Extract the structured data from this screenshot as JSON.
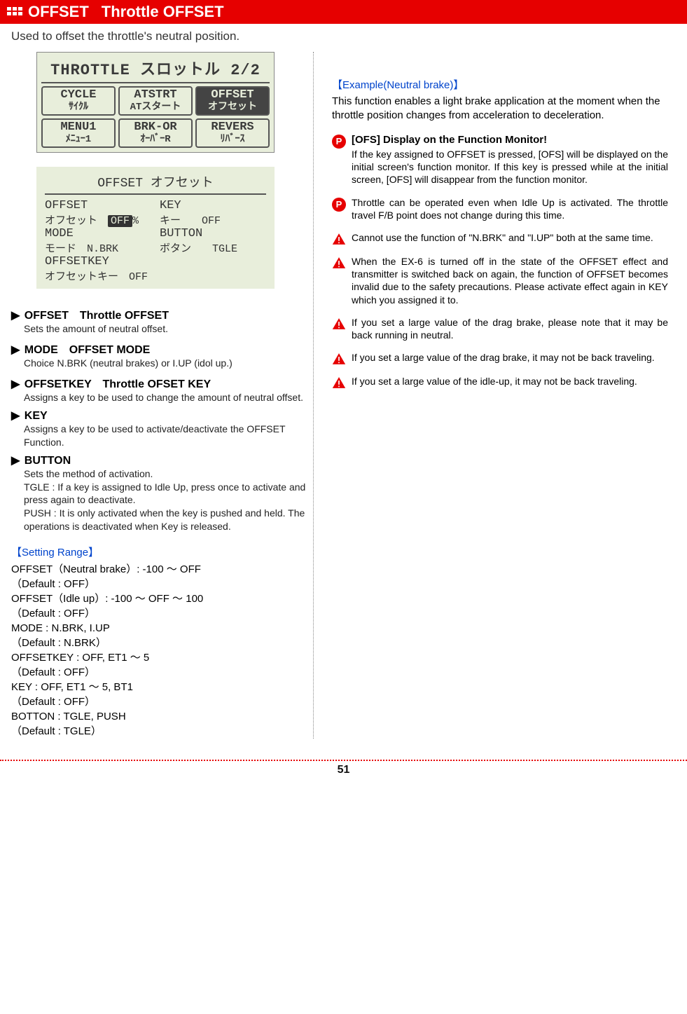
{
  "header": {
    "title_main": "OFFSET",
    "title_sub": "Throttle OFFSET"
  },
  "subtitle": "Used to offset the throttle's neutral position.",
  "lcd1": {
    "row1": "THROTTLE スロットル 2/2",
    "cells_top": [
      {
        "top": "CYCLE",
        "bottom": "ｻｲｸﾙ",
        "selected": false
      },
      {
        "top": "ATSTRT",
        "bottom": "ATスタート",
        "selected": false
      },
      {
        "top": "OFFSET",
        "bottom": "オフセット",
        "selected": true
      }
    ],
    "cells_bottom": [
      {
        "top": "MENU1",
        "bottom": "ﾒﾆｭｰ1",
        "selected": false
      },
      {
        "top": "BRK-OR",
        "bottom": "ｵｰﾊﾞｰR",
        "selected": false
      },
      {
        "top": "REVERS",
        "bottom": "ﾘﾊﾞｰｽ",
        "selected": false
      }
    ]
  },
  "lcd2": {
    "header": "OFFSET オフセット",
    "rows": [
      {
        "l_lab": "OFFSET",
        "l_sub": "オフセット",
        "l_val": "OFF",
        "l_unit": "%",
        "l_inv": true,
        "r_lab": "KEY",
        "r_sub": "キー",
        "r_val": "OFF"
      },
      {
        "l_lab": "MODE",
        "l_sub": "モード",
        "l_val": "N.BRK",
        "r_lab": "BUTTON",
        "r_sub": "ボタン",
        "r_val": "TGLE"
      },
      {
        "l_lab": "OFFSETKEY",
        "l_sub": "オフセットキー",
        "l_val": "OFF"
      }
    ]
  },
  "definitions": [
    {
      "head": "OFFSET　Throttle OFFSET",
      "desc": "Sets the amount of neutral offset."
    },
    {
      "head": "MODE　OFFSET MODE",
      "desc": "Choice N.BRK (neutral brakes) or I.UP (idol up.)"
    },
    {
      "head": "OFFSETKEY　Throttle OFSET KEY",
      "desc": "Assigns a key to be used to change the amount of neutral offset."
    },
    {
      "head": "KEY",
      "desc": "Assigns a key to be used to activate/deactivate the OFFSET Function."
    },
    {
      "head": "BUTTON",
      "desc": "Sets the method of activation.\nTGLE : If a key is assigned to Idle Up, press once to activate and press again to deactivate.\nPUSH : It is only activated when the key is pushed and held. The operations is deactivated when Key is released."
    }
  ],
  "setting_range": {
    "header": "【Setting Range】",
    "lines": [
      "OFFSET（Neutral brake）: -100 ～ OFF",
      "（Default : OFF）",
      "OFFSET（Idle up）: -100 ～ OFF ～ 100",
      "（Default : OFF）",
      "MODE : N.BRK, I.UP",
      "（Default : N.BRK）",
      "OFFSETKEY : OFF, ET1 ～ 5",
      "（Default : OFF）",
      "KEY : OFF, ET1 ～ 5, BT1",
      "（Default : OFF）",
      "BOTTON : TGLE, PUSH",
      "（Default : TGLE）"
    ]
  },
  "example": {
    "header": "【Example(Neutral brake)】",
    "body": "This function enables a light brake application at the moment when the throttle position changes from acceleration to deceleration."
  },
  "infos": [
    {
      "icon": "P",
      "title": "[OFS] Display on the Function Monitor!",
      "body": "If the key assigned to OFFSET is pressed, [OFS] will be displayed on the initial screen's function monitor. If this key is pressed while at the initial screen, [OFS] will disappear from the function monitor."
    },
    {
      "icon": "P",
      "body": "Throttle can be operated even when Idle Up is activated. The throttle travel F/B point does not change during this time."
    },
    {
      "icon": "warn",
      "body": "Cannot use the function of \"N.BRK\" and \"I.UP\" both at the same time."
    },
    {
      "icon": "warn",
      "body": "When the EX-6 is turned off in the state of the OFFSET effect and transmitter is switched back on again, the function of OFFSET becomes invalid due to the safety precautions. Please activate effect again in KEY which you assigned it to."
    },
    {
      "icon": "warn",
      "body": "If you set a large value of the drag brake, please note that it may be back running in neutral."
    },
    {
      "icon": "warn",
      "body": "If you set a large value of the drag brake, it may not be back traveling."
    },
    {
      "icon": "warn",
      "body": "If you set a large value of the idle-up, it may not be back traveling."
    }
  ],
  "page_number": "51"
}
